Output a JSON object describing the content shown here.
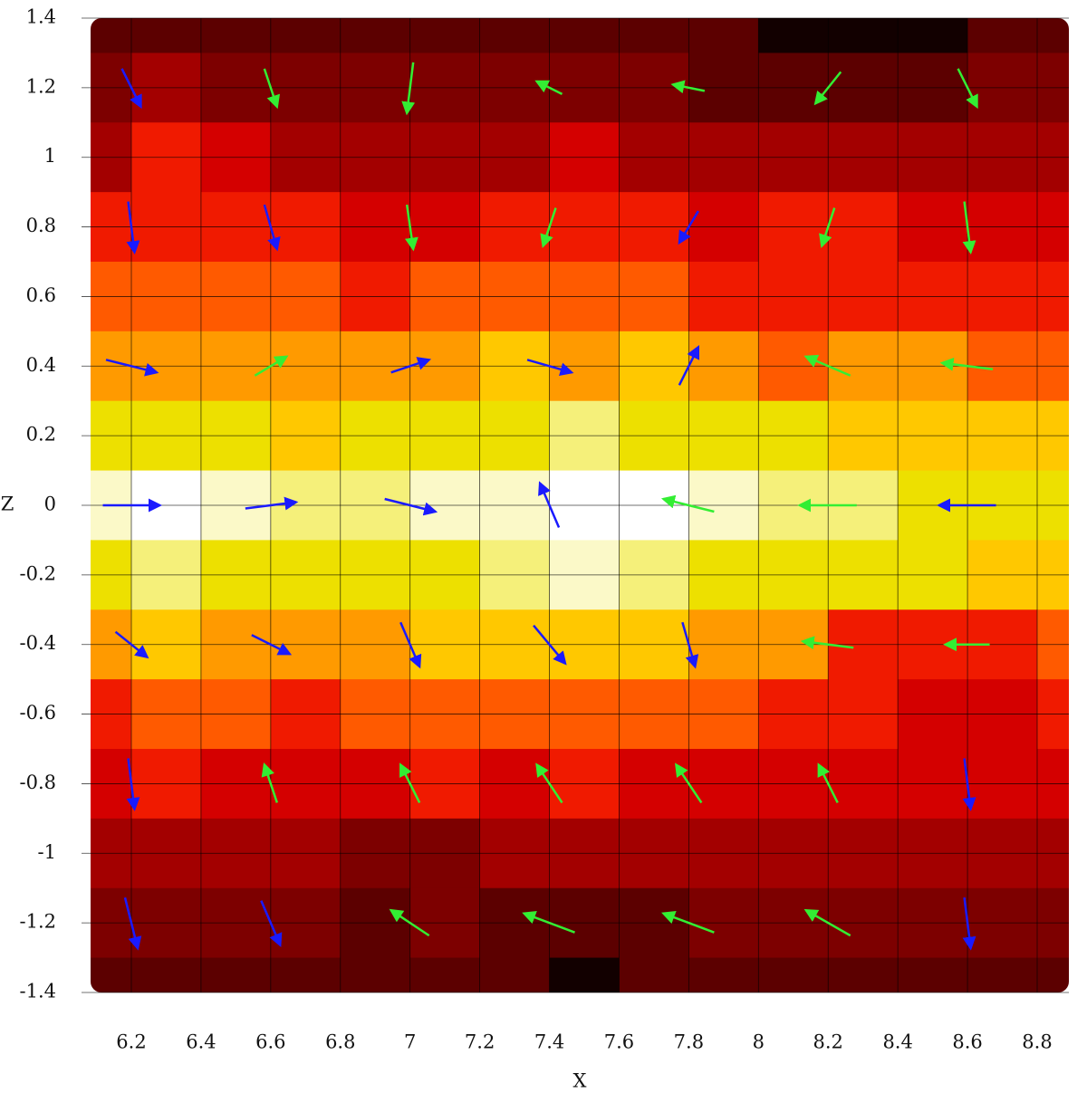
{
  "chart_data": {
    "type": "contour",
    "xlabel": "X",
    "ylabel": "Z",
    "xlim": [
      6.083,
      8.891
    ],
    "ylim": [
      -1.4,
      1.4
    ],
    "xticks": [
      6.2,
      6.4,
      6.6,
      6.8,
      7,
      7.2,
      7.4,
      7.6,
      7.8,
      8,
      8.2,
      8.4,
      8.6,
      8.8
    ],
    "yticks": [
      1.4,
      1.2,
      1,
      0.8,
      0.6,
      0.4,
      0.2,
      0,
      -0.2,
      -0.4,
      -0.6,
      -0.8,
      -1,
      -1.2,
      -1.4
    ],
    "grid": true,
    "colormap": [
      "#120000",
      "#5c0000",
      "#7d0000",
      "#a30000",
      "#d40000",
      "#f01a00",
      "#ff5a00",
      "#ff9a00",
      "#ffc800",
      "#ede000",
      "#f5f07a",
      "#fbf9c8",
      "#ffffff"
    ],
    "grid_x": [
      6.1,
      6.3,
      6.5,
      6.7,
      6.9,
      7.1,
      7.3,
      7.5,
      7.7,
      7.9,
      8.1,
      8.3,
      8.5,
      8.7,
      8.9
    ],
    "grid_z": [
      1.4,
      1.2,
      1.0,
      0.8,
      0.6,
      0.4,
      0.2,
      0,
      -0.2,
      -0.4,
      -0.6,
      -0.8,
      -1.0,
      -1.2,
      -1.4
    ],
    "field": [
      [
        0.15,
        0.15,
        0.15,
        0.15,
        0.12,
        0.12,
        0.15,
        0.15,
        0.15,
        0.1,
        0.06,
        0.03,
        0.04,
        0.1,
        0.15
      ],
      [
        0.22,
        0.25,
        0.22,
        0.2,
        0.18,
        0.2,
        0.22,
        0.2,
        0.18,
        0.15,
        0.12,
        0.12,
        0.15,
        0.2,
        0.22
      ],
      [
        0.3,
        0.4,
        0.38,
        0.3,
        0.25,
        0.28,
        0.3,
        0.35,
        0.3,
        0.25,
        0.25,
        0.28,
        0.3,
        0.3,
        0.3
      ],
      [
        0.4,
        0.45,
        0.42,
        0.4,
        0.35,
        0.38,
        0.4,
        0.42,
        0.4,
        0.38,
        0.4,
        0.4,
        0.38,
        0.36,
        0.38
      ],
      [
        0.5,
        0.52,
        0.5,
        0.48,
        0.45,
        0.48,
        0.5,
        0.5,
        0.48,
        0.46,
        0.45,
        0.45,
        0.44,
        0.42,
        0.4
      ],
      [
        0.6,
        0.6,
        0.58,
        0.56,
        0.58,
        0.6,
        0.62,
        0.6,
        0.62,
        0.6,
        0.5,
        0.56,
        0.56,
        0.52,
        0.5
      ],
      [
        0.7,
        0.72,
        0.7,
        0.68,
        0.7,
        0.72,
        0.75,
        0.78,
        0.76,
        0.72,
        0.7,
        0.68,
        0.68,
        0.66,
        0.65
      ],
      [
        0.85,
        0.98,
        0.9,
        0.82,
        0.8,
        0.86,
        0.9,
        1.0,
        0.95,
        0.85,
        0.8,
        0.78,
        0.76,
        0.75,
        0.74
      ],
      [
        0.74,
        0.8,
        0.75,
        0.72,
        0.72,
        0.76,
        0.82,
        0.86,
        0.82,
        0.76,
        0.72,
        0.7,
        0.7,
        0.68,
        0.66
      ],
      [
        0.6,
        0.62,
        0.6,
        0.58,
        0.6,
        0.62,
        0.64,
        0.66,
        0.62,
        0.6,
        0.56,
        0.45,
        0.42,
        0.45,
        0.5
      ],
      [
        0.45,
        0.48,
        0.5,
        0.46,
        0.48,
        0.5,
        0.5,
        0.52,
        0.5,
        0.5,
        0.45,
        0.4,
        0.36,
        0.38,
        0.4
      ],
      [
        0.36,
        0.4,
        0.38,
        0.36,
        0.38,
        0.4,
        0.38,
        0.4,
        0.38,
        0.38,
        0.36,
        0.34,
        0.36,
        0.36,
        0.35
      ],
      [
        0.28,
        0.3,
        0.28,
        0.26,
        0.2,
        0.22,
        0.25,
        0.28,
        0.26,
        0.25,
        0.25,
        0.24,
        0.26,
        0.28,
        0.28
      ],
      [
        0.2,
        0.2,
        0.2,
        0.18,
        0.15,
        0.16,
        0.15,
        0.12,
        0.14,
        0.16,
        0.18,
        0.18,
        0.2,
        0.2,
        0.2
      ],
      [
        0.15,
        0.15,
        0.15,
        0.14,
        0.12,
        0.12,
        0.1,
        0.06,
        0.08,
        0.1,
        0.12,
        0.14,
        0.15,
        0.15,
        0.15
      ]
    ],
    "vector_colors": {
      "negative": "#1a1aff",
      "positive": "#33ee33"
    },
    "vectors": {
      "x": [
        6.2,
        6.6,
        7.0,
        7.4,
        7.8,
        8.2,
        8.6
      ],
      "z": [
        1.2,
        0.8,
        0.4,
        0,
        -0.4,
        -0.8,
        -1.2
      ],
      "u": [
        [
          0.3,
          0.2,
          -0.1,
          -0.4,
          -0.5,
          -0.4,
          0.3
        ],
        [
          0.1,
          0.2,
          0.1,
          -0.2,
          -0.3,
          -0.2,
          0.1
        ],
        [
          0.8,
          0.5,
          0.6,
          0.7,
          0.3,
          -0.7,
          -0.8
        ],
        [
          0.9,
          0.8,
          0.8,
          -0.3,
          -0.8,
          -0.9,
          -0.9
        ],
        [
          0.5,
          0.6,
          0.3,
          0.5,
          0.2,
          -0.8,
          -0.7
        ],
        [
          0.1,
          -0.2,
          -0.3,
          -0.4,
          -0.4,
          -0.3,
          0.1
        ],
        [
          0.2,
          0.3,
          -0.6,
          -0.8,
          -0.8,
          -0.7,
          0.1
        ]
      ],
      "w": [
        [
          -0.6,
          -0.6,
          -0.8,
          0.2,
          0.1,
          -0.5,
          -0.6
        ],
        [
          -0.8,
          -0.7,
          -0.7,
          -0.6,
          -0.5,
          -0.6,
          -0.8
        ],
        [
          -0.2,
          0.3,
          0.2,
          -0.2,
          0.6,
          0.3,
          0.1
        ],
        [
          0,
          0.1,
          -0.2,
          0.7,
          0.2,
          0,
          0
        ],
        [
          -0.4,
          -0.3,
          -0.7,
          -0.6,
          -0.7,
          0.1,
          0
        ],
        [
          -0.8,
          0.6,
          0.6,
          0.6,
          0.6,
          0.6,
          -0.8
        ],
        [
          -0.8,
          -0.7,
          0.4,
          0.3,
          0.3,
          0.4,
          -0.8
        ]
      ],
      "v": [
        [
          -1,
          1,
          1,
          1,
          1,
          1,
          1
        ],
        [
          -1,
          -1,
          1,
          1,
          -1,
          1,
          1
        ],
        [
          -1,
          1,
          -1,
          -1,
          -1,
          1,
          1
        ],
        [
          -1,
          -1,
          -1,
          -1,
          1,
          1,
          -1
        ],
        [
          -1,
          -1,
          -1,
          -1,
          -1,
          1,
          1
        ],
        [
          -1,
          1,
          1,
          1,
          1,
          1,
          -1
        ],
        [
          -1,
          -1,
          1,
          1,
          1,
          1,
          -1
        ]
      ]
    }
  }
}
